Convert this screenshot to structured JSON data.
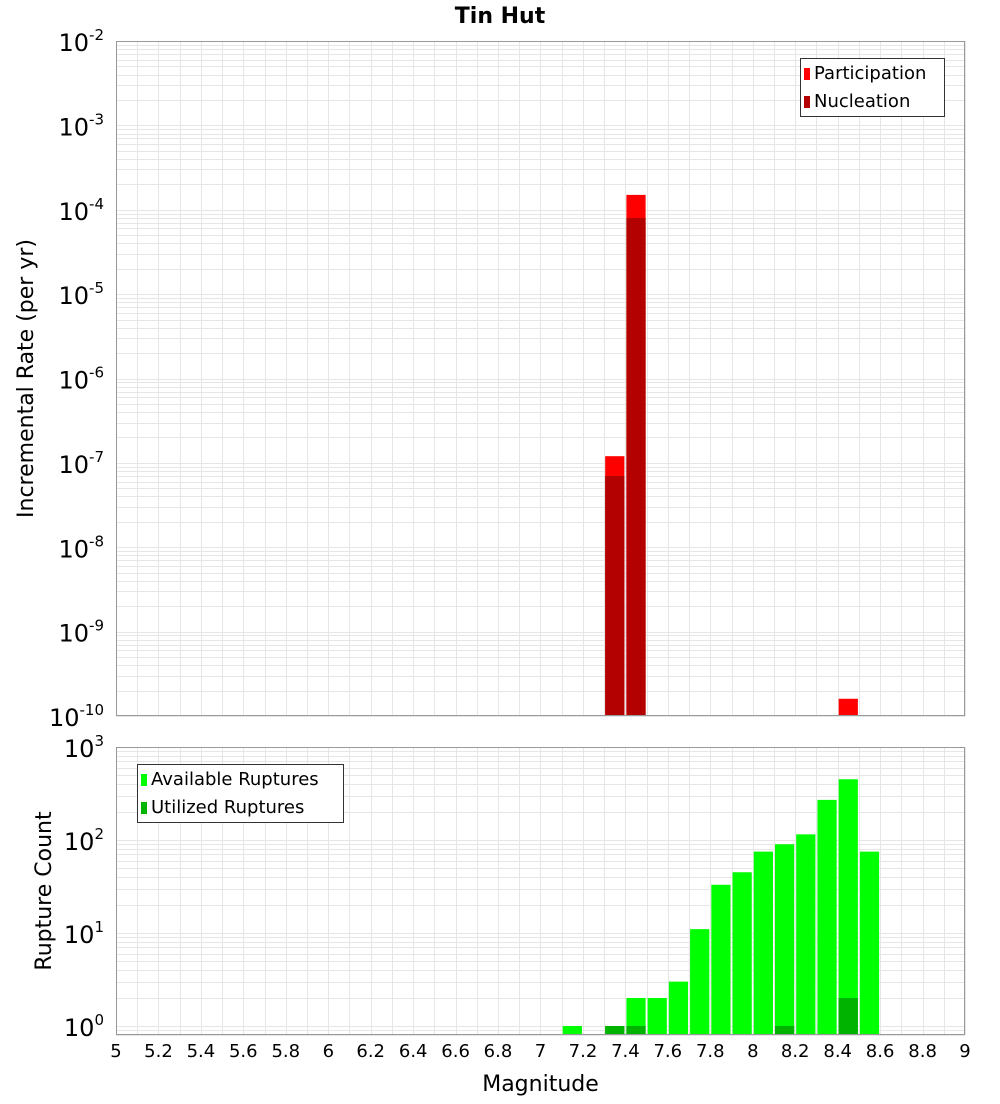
{
  "title": "Tin Hut",
  "chart_data": [
    {
      "type": "bar",
      "title": "Tin Hut",
      "ylabel": "Incremental Rate (per yr)",
      "xlabel": "",
      "xlim": [
        5,
        9
      ],
      "ylim": [
        1e-10,
        0.01
      ],
      "yscale": "log",
      "grid": true,
      "legend_position": "top-right",
      "bin_width": 0.1,
      "series": [
        {
          "name": "Participation",
          "color": "#ff0000",
          "points": [
            {
              "x": 7.35,
              "y": 1.2e-07
            },
            {
              "x": 7.45,
              "y": 0.00015
            },
            {
              "x": 8.45,
              "y": 1.6e-10
            }
          ]
        },
        {
          "name": "Nucleation",
          "color": "#b30000",
          "points": [
            {
              "x": 7.35,
              "y": 7e-08
            },
            {
              "x": 7.45,
              "y": 8e-05
            }
          ]
        }
      ],
      "y_tick_labels": [
        {
          "base": "10",
          "exp": "-10"
        },
        {
          "base": "10",
          "exp": "-9"
        },
        {
          "base": "10",
          "exp": "-8"
        },
        {
          "base": "10",
          "exp": "-7"
        },
        {
          "base": "10",
          "exp": "-6"
        },
        {
          "base": "10",
          "exp": "-5"
        },
        {
          "base": "10",
          "exp": "-4"
        },
        {
          "base": "10",
          "exp": "-3"
        },
        {
          "base": "10",
          "exp": "-2"
        }
      ]
    },
    {
      "type": "bar",
      "title": "",
      "ylabel": "Rupture Count",
      "xlabel": "Magnitude",
      "xlim": [
        5,
        9
      ],
      "ylim": [
        0.8,
        1000
      ],
      "yscale": "log",
      "grid": true,
      "legend_position": "top-left",
      "bin_width": 0.1,
      "series": [
        {
          "name": "Available Ruptures",
          "color": "#00ff00",
          "points": [
            {
              "x": 7.15,
              "y": 1
            },
            {
              "x": 7.35,
              "y": 1
            },
            {
              "x": 7.45,
              "y": 2
            },
            {
              "x": 7.55,
              "y": 2
            },
            {
              "x": 7.65,
              "y": 3
            },
            {
              "x": 7.75,
              "y": 11
            },
            {
              "x": 7.85,
              "y": 33
            },
            {
              "x": 7.95,
              "y": 45
            },
            {
              "x": 8.05,
              "y": 75
            },
            {
              "x": 8.15,
              "y": 90
            },
            {
              "x": 8.25,
              "y": 115
            },
            {
              "x": 8.35,
              "y": 270
            },
            {
              "x": 8.45,
              "y": 450
            },
            {
              "x": 8.55,
              "y": 75
            }
          ]
        },
        {
          "name": "Utilized Ruptures",
          "color": "#00b300",
          "points": [
            {
              "x": 7.35,
              "y": 1
            },
            {
              "x": 7.45,
              "y": 1
            },
            {
              "x": 8.15,
              "y": 1
            },
            {
              "x": 8.45,
              "y": 2
            }
          ]
        }
      ],
      "x_tick_labels": [
        "5",
        "5.2",
        "5.4",
        "5.6",
        "5.8",
        "6",
        "6.2",
        "6.4",
        "6.6",
        "6.8",
        "7",
        "7.2",
        "7.4",
        "7.6",
        "7.8",
        "8",
        "8.2",
        "8.4",
        "8.6",
        "8.8",
        "9"
      ],
      "y_tick_labels": [
        {
          "base": "10",
          "exp": "0"
        },
        {
          "base": "10",
          "exp": "1"
        },
        {
          "base": "10",
          "exp": "2"
        },
        {
          "base": "10",
          "exp": "3"
        }
      ]
    }
  ]
}
